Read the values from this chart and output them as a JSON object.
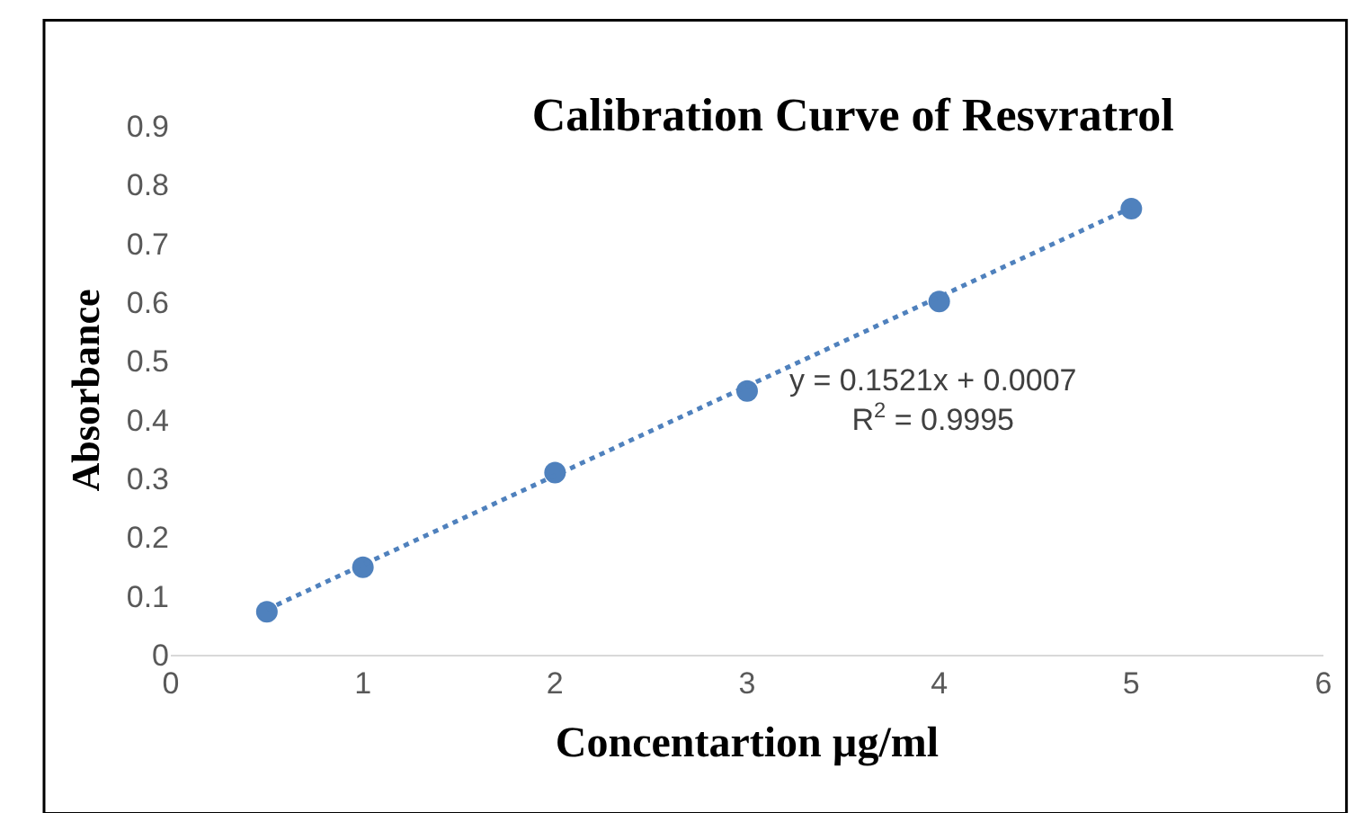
{
  "chart_data": {
    "type": "scatter",
    "title": "Calibration Curve of Resvratrol",
    "xlabel": "Concentartion µg/ml",
    "ylabel": "Absorbance",
    "x": [
      0.5,
      1,
      2,
      3,
      4,
      5
    ],
    "series": [
      {
        "color": "#4f81bd",
        "values": [
          0.073,
          0.149,
          0.31,
          0.449,
          0.601,
          0.759
        ],
        "marker": "circle"
      },
      {
        "type": "line",
        "color": "#4f81bd",
        "x": [
          0.5,
          5
        ],
        "values": [
          0.077,
          0.761
        ],
        "line_style": "dotted",
        "marker": "none"
      }
    ],
    "annotations": [
      "y = 0.1521x + 0.0007\nR$^{2}$ = 0.9995"
    ],
    "xlim": [
      0,
      6
    ],
    "xticks": [
      0,
      1,
      2,
      3,
      4,
      5,
      6
    ],
    "ylim": [
      0,
      0.9
    ],
    "yticks": [
      0,
      0.1,
      0.2,
      0.3,
      0.4,
      0.5,
      0.6,
      0.7,
      0.8,
      0.9
    ],
    "grid": false,
    "legend": false
  }
}
